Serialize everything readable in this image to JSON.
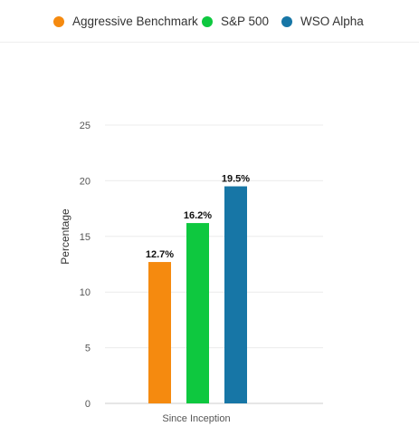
{
  "chart_data": {
    "type": "bar",
    "categories": [
      "Since Inception"
    ],
    "series": [
      {
        "name": "Aggressive Benchmark",
        "values": [
          12.7
        ],
        "color": "#f58a0f",
        "label": "12.7%"
      },
      {
        "name": "S&P 500",
        "values": [
          16.2
        ],
        "color": "#0ec83f",
        "label": "16.2%"
      },
      {
        "name": "WSO Alpha",
        "values": [
          19.5
        ],
        "color": "#1776a6",
        "label": "19.5%"
      }
    ],
    "ylabel": "Percentage",
    "xlabel": "",
    "ylim": [
      0,
      25
    ],
    "yticks": [
      "0",
      "5",
      "10",
      "15",
      "20",
      "25"
    ],
    "grid": true,
    "legend_position": "top"
  }
}
